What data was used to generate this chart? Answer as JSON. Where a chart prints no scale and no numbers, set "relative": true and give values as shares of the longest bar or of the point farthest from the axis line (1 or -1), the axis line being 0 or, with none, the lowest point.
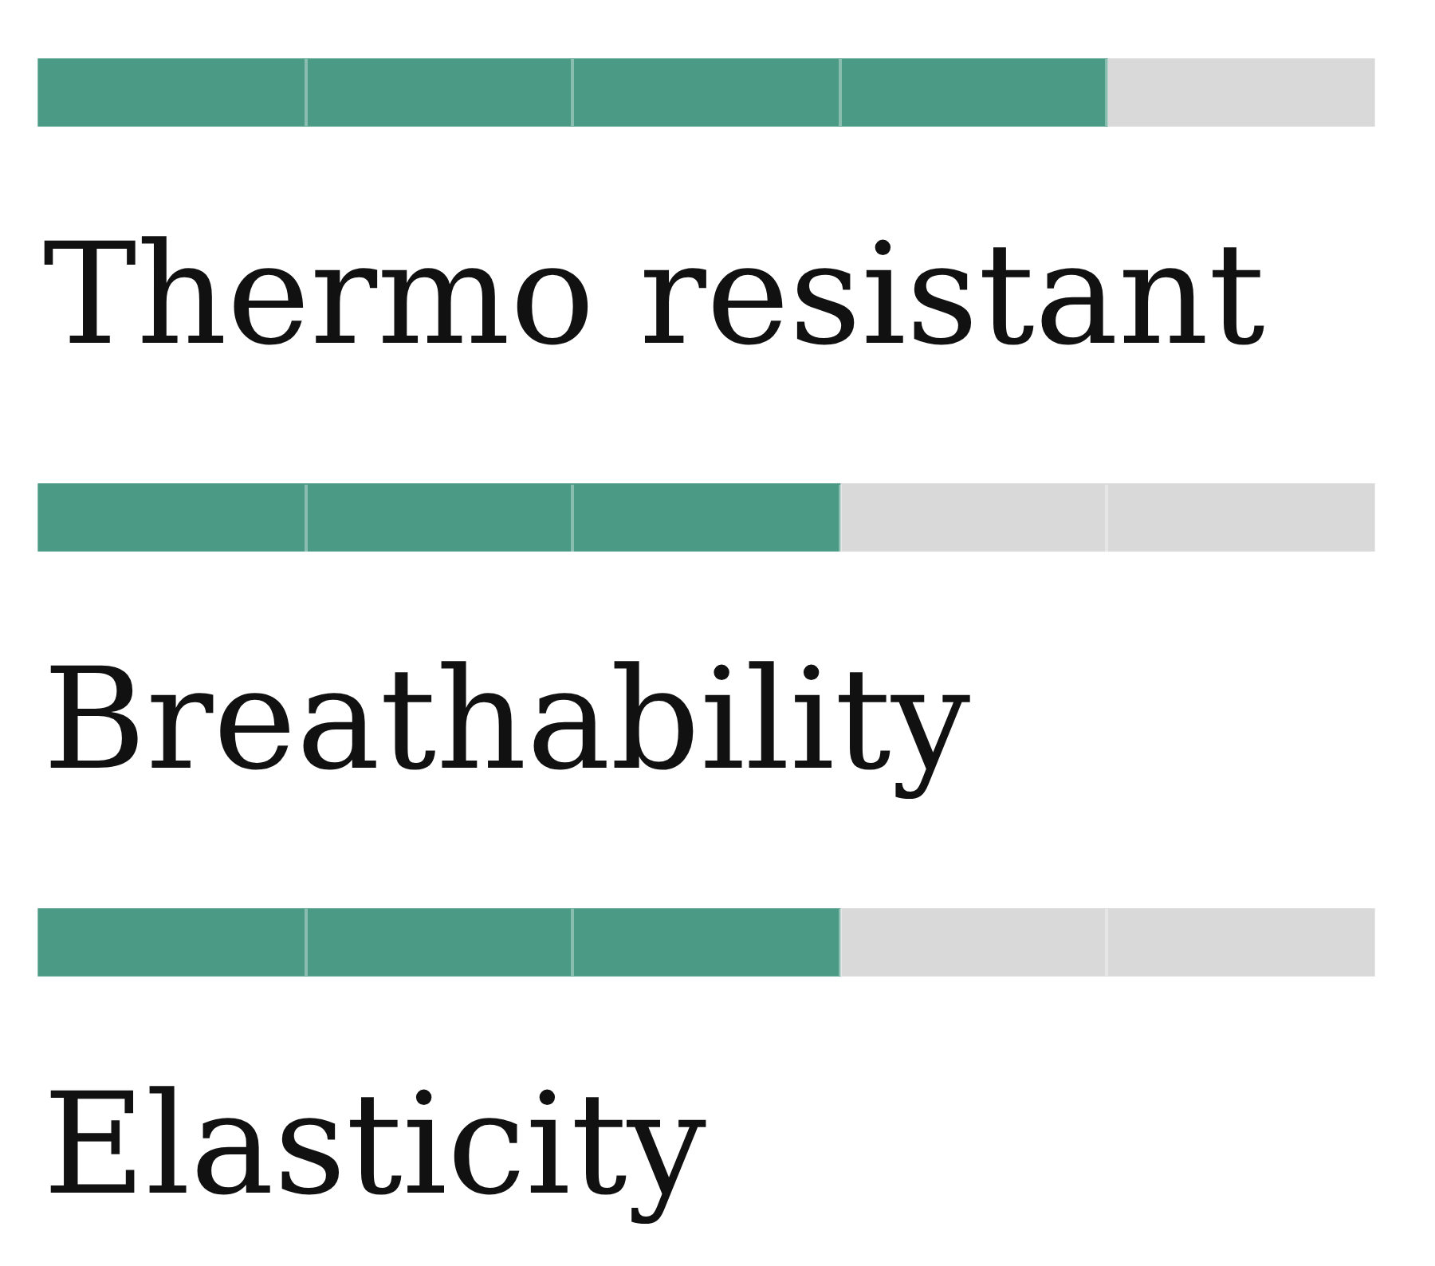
{
  "chart_data": {
    "type": "bar",
    "orientation": "horizontal",
    "stacked": true,
    "relative": true,
    "categories": [
      "Thermo resistant",
      "Breathability",
      "Elasticity"
    ],
    "series": [
      {
        "color": "#4a9a86",
        "values": [
          0.8,
          0.6,
          0.6
        ]
      },
      {
        "color": "#d9d9d9",
        "values": [
          0.2,
          0.4,
          0.4
        ]
      }
    ]
  }
}
